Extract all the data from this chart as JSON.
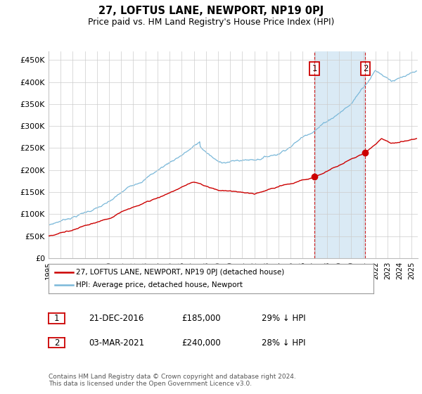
{
  "title": "27, LOFTUS LANE, NEWPORT, NP19 0PJ",
  "subtitle": "Price paid vs. HM Land Registry's House Price Index (HPI)",
  "ylabel_ticks": [
    "£0",
    "£50K",
    "£100K",
    "£150K",
    "£200K",
    "£250K",
    "£300K",
    "£350K",
    "£400K",
    "£450K"
  ],
  "ytick_values": [
    0,
    50000,
    100000,
    150000,
    200000,
    250000,
    300000,
    350000,
    400000,
    450000
  ],
  "ylim": [
    0,
    470000
  ],
  "xlim_start": 1995.0,
  "xlim_end": 2025.5,
  "hpi_color": "#7ab8d9",
  "hpi_fill_color": "#daeaf5",
  "price_color": "#cc0000",
  "vline_color": "#cc0000",
  "marker1_x": 2016.97,
  "marker2_x": 2021.17,
  "marker1_y_price": 185000,
  "marker2_y_price": 240000,
  "legend_label1": "27, LOFTUS LANE, NEWPORT, NP19 0PJ (detached house)",
  "legend_label2": "HPI: Average price, detached house, Newport",
  "table_rows": [
    {
      "num": "1",
      "date": "21-DEC-2016",
      "price": "£185,000",
      "hpi": "29% ↓ HPI"
    },
    {
      "num": "2",
      "date": "03-MAR-2021",
      "price": "£240,000",
      "hpi": "28% ↓ HPI"
    }
  ],
  "footnote": "Contains HM Land Registry data © Crown copyright and database right 2024.\nThis data is licensed under the Open Government Licence v3.0.",
  "background_color": "#ffffff",
  "grid_color": "#cccccc"
}
